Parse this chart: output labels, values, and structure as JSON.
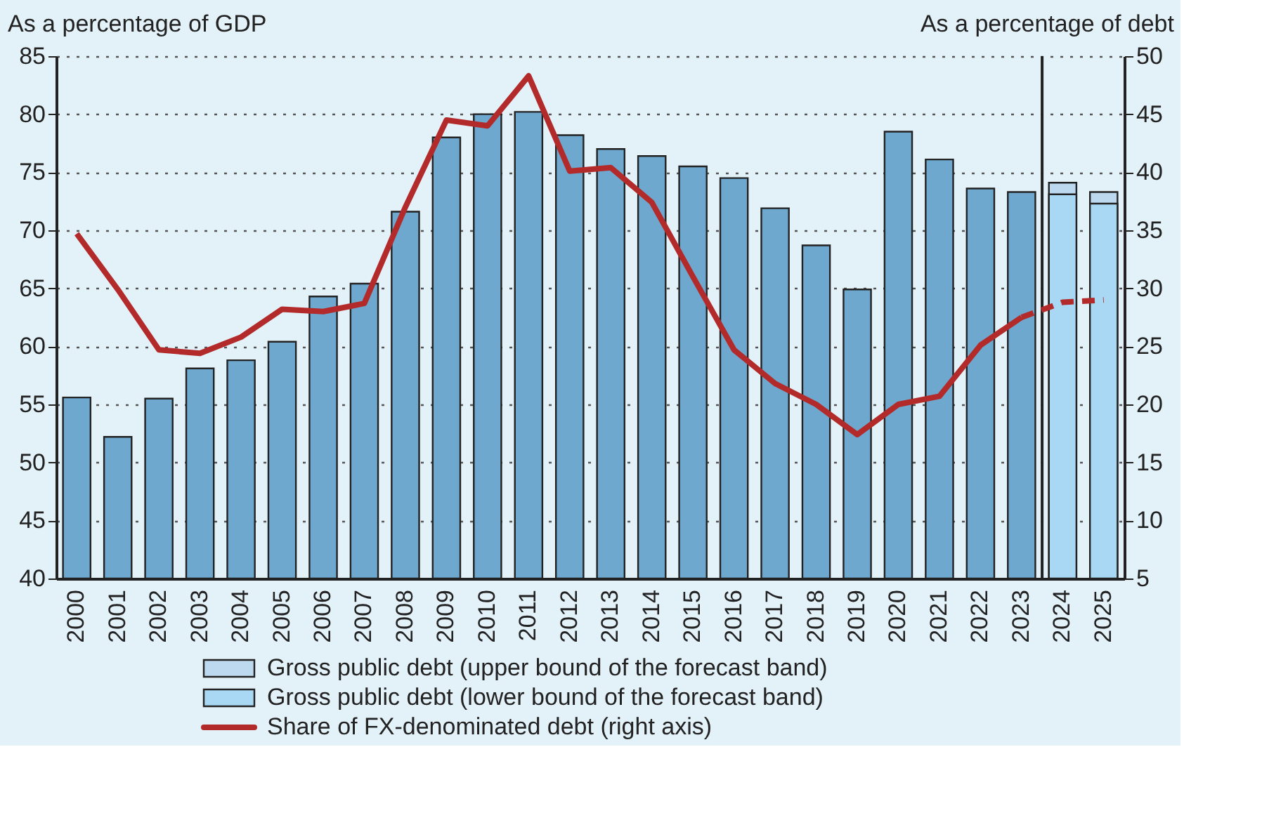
{
  "chart_data": {
    "type": "bar",
    "ylabel": "As a percentage of GDP",
    "y2label": "As a percentage of debt",
    "x": [
      2000,
      2001,
      2002,
      2003,
      2004,
      2005,
      2006,
      2007,
      2008,
      2009,
      2010,
      2011,
      2012,
      2013,
      2014,
      2015,
      2016,
      2017,
      2018,
      2019,
      2020,
      2021,
      2022,
      2023,
      2024,
      2025
    ],
    "xlim": [
      1999.5,
      2025.5
    ],
    "xticks": [
      2000,
      2001,
      2002,
      2003,
      2004,
      2005,
      2006,
      2007,
      2008,
      2009,
      2010,
      2011,
      2012,
      2013,
      2014,
      2015,
      2016,
      2017,
      2018,
      2019,
      2020,
      2021,
      2022,
      2023,
      2024,
      2025
    ],
    "series": [
      {
        "name": "Gross public debt (upper bound of the forecast band)",
        "color": "#bcd9ef",
        "values": [
          null,
          null,
          null,
          null,
          null,
          null,
          null,
          null,
          null,
          null,
          null,
          null,
          null,
          null,
          null,
          null,
          null,
          null,
          null,
          null,
          null,
          null,
          null,
          null,
          74.1,
          73.3
        ]
      },
      {
        "name": "Gross public debt (lower bound of the forecast band)",
        "color": "#a8d8f3",
        "colors": [
          "#6fa8cf",
          "#6fa8cf",
          "#6fa8cf",
          "#6fa8cf",
          "#6fa8cf",
          "#6fa8cf",
          "#6fa8cf",
          "#6fa8cf",
          "#6fa8cf",
          "#6fa8cf",
          "#6fa8cf",
          "#6fa8cf",
          "#6fa8cf",
          "#6fa8cf",
          "#6fa8cf",
          "#6fa8cf",
          "#6fa8cf",
          "#6fa8cf",
          "#6fa8cf",
          "#6fa8cf",
          "#6fa8cf",
          "#6fa8cf",
          "#6fa8cf",
          "#6fa8cf",
          "#a8d8f3",
          "#a8d8f3"
        ],
        "values": [
          55.6,
          52.2,
          55.5,
          58.1,
          58.8,
          60.4,
          64.3,
          65.4,
          71.6,
          78,
          80,
          80.2,
          78.2,
          77,
          76.4,
          75.5,
          74.5,
          71.9,
          68.7,
          64.9,
          78.5,
          76.1,
          73.6,
          73.3,
          73.1,
          72.3
        ]
      },
      {
        "name": "Share of FX-denominated debt (right axis)",
        "type": "line",
        "axis": "y2",
        "color": "#b22a2a",
        "line_style": "solid",
        "values": [
          34.7,
          29.9,
          24.7,
          24.4,
          25.8,
          28.2,
          28,
          28.7,
          37,
          44.5,
          44,
          48.3,
          40.1,
          40.4,
          37.4,
          31,
          24.7,
          21.8,
          20,
          17.4,
          20,
          20.7,
          25.1,
          27.5,
          null,
          null
        ]
      },
      {
        "type": "line",
        "axis": "y2",
        "color": "#b22a2a",
        "line_style": "dashed",
        "values": [
          null,
          null,
          null,
          null,
          null,
          null,
          null,
          null,
          null,
          null,
          null,
          null,
          null,
          null,
          null,
          null,
          null,
          null,
          null,
          null,
          null,
          null,
          null,
          27.5,
          28.8,
          29
        ]
      }
    ],
    "ylim": [
      40,
      85
    ],
    "yticks": [
      40,
      45,
      50,
      55,
      60,
      65,
      70,
      75,
      80,
      85
    ],
    "y2lim": [
      5,
      50
    ],
    "y2ticks": [
      5,
      10,
      15,
      20,
      25,
      30,
      35,
      40,
      45,
      50
    ],
    "ref_lines": [
      {
        "axis": "x",
        "value": 2023.5,
        "color": "#222222"
      }
    ],
    "grid": "y",
    "legend": "bottom"
  }
}
